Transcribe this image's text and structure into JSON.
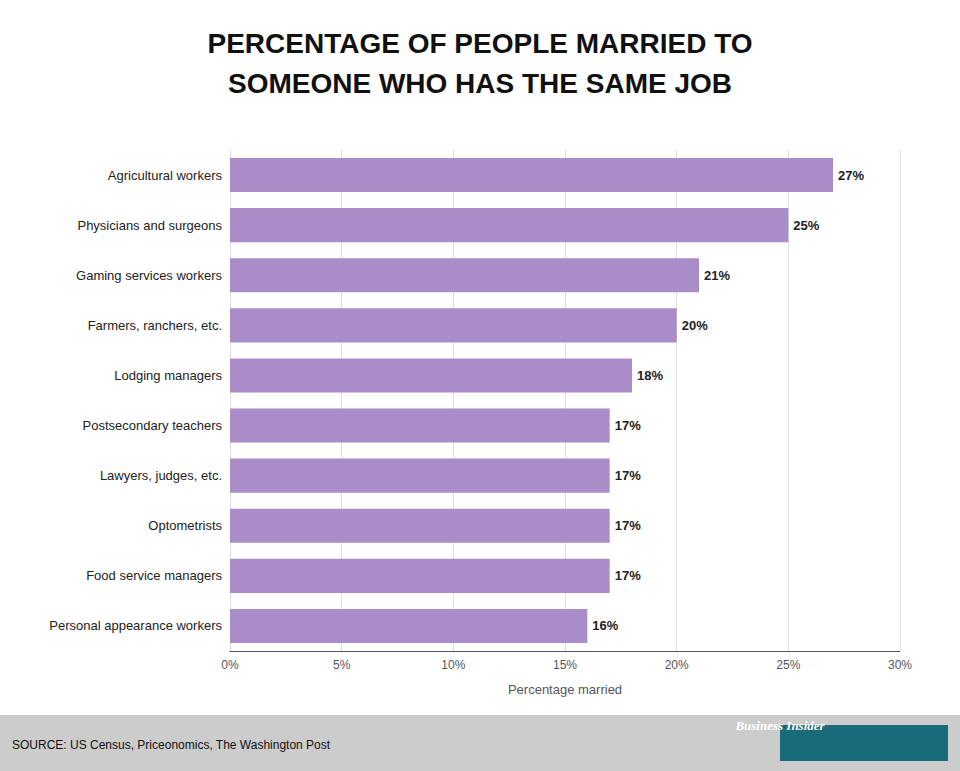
{
  "chart_data": {
    "type": "bar",
    "orientation": "horizontal",
    "title": "PERCENTAGE OF PEOPLE MARRIED TO\nSOMEONE WHO HAS THE SAME JOB",
    "x_label": "Percentage married",
    "categories": [
      "Personal appearance workers",
      "Food service managers",
      "Optometrists",
      "Lawyers, judges, etc.",
      "Postsecondary teachers",
      "Lodging managers",
      "Farmers, ranchers, etc.",
      "Gaming services workers",
      "Physicians and surgeons",
      "Agricultural workers"
    ],
    "values": [
      16,
      17,
      17,
      17,
      17,
      18,
      20,
      21,
      25,
      27
    ],
    "value_labels": [
      "16%",
      "17%",
      "17%",
      "17%",
      "17%",
      "18%",
      "20%",
      "21%",
      "25%",
      "27%"
    ],
    "data_labels": true,
    "color": "#A98DC8",
    "xlim": [
      0,
      30
    ],
    "xticks": [
      {
        "value": 0,
        "label": "0%"
      },
      {
        "value": 5,
        "label": "5%"
      },
      {
        "value": 10,
        "label": "10%"
      },
      {
        "value": 15,
        "label": "15%"
      },
      {
        "value": 20,
        "label": "20%"
      },
      {
        "value": 25,
        "label": "25%"
      },
      {
        "value": 30,
        "label": "30%"
      }
    ],
    "grid": true,
    "annotations": [
      "SOURCE: US Census, Priceonomics, The Washington Post",
      "Business Insider"
    ]
  }
}
